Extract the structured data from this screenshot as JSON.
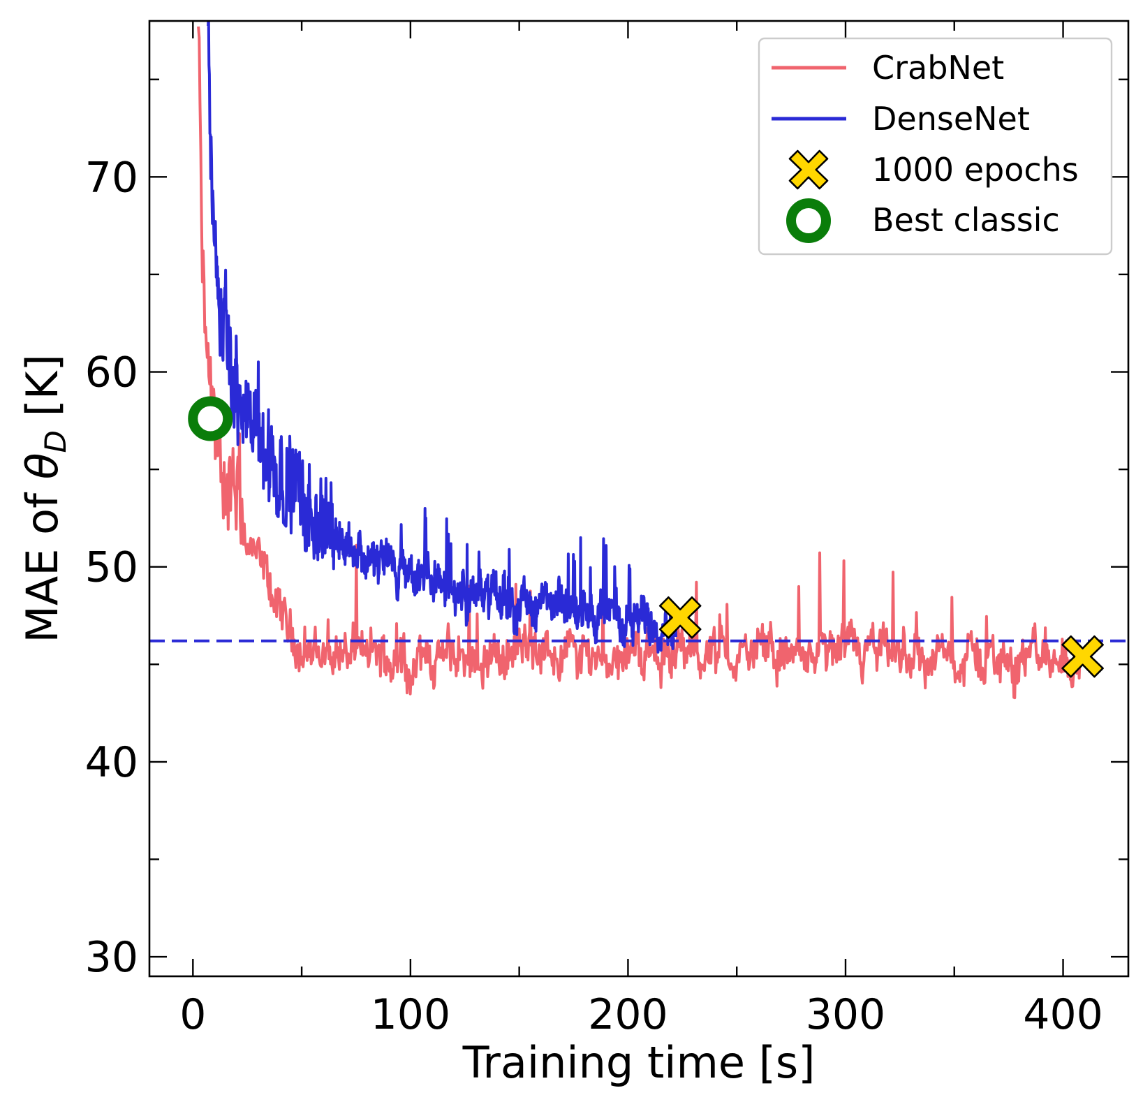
{
  "chart_data": {
    "type": "line",
    "xlabel": "Training time [s]",
    "ylabel_prefix": "MAE of ",
    "ylabel_symbol": "θ",
    "ylabel_subscript": "D",
    "ylabel_suffix": " [K]",
    "xlim": [
      -20,
      430
    ],
    "ylim": [
      29,
      78
    ],
    "x_ticks_major": [
      0,
      100,
      200,
      300,
      400
    ],
    "x_ticks_minor": [
      50,
      150,
      250,
      350
    ],
    "y_ticks_major": [
      30,
      40,
      50,
      60,
      70
    ],
    "y_ticks_minor": [
      35,
      45,
      55,
      65,
      75
    ],
    "grid": false,
    "legend_position": "top-right",
    "series": [
      {
        "name": "CrabNet",
        "color": "#f0646e",
        "x_end": 410,
        "keypoints": [
          [
            2.5,
            78
          ],
          [
            3.5,
            70
          ],
          [
            4.5,
            64
          ],
          [
            6,
            61
          ],
          [
            8,
            58
          ],
          [
            10,
            56
          ],
          [
            13,
            55
          ],
          [
            18,
            54
          ],
          [
            25,
            51
          ],
          [
            30,
            50
          ],
          [
            35,
            49
          ],
          [
            40,
            47.5
          ],
          [
            45,
            46.5
          ],
          [
            55,
            45.6
          ],
          [
            70,
            45.5
          ],
          [
            100,
            45.2
          ],
          [
            150,
            45.6
          ],
          [
            200,
            45.6
          ],
          [
            250,
            45.5
          ],
          [
            300,
            45.4
          ],
          [
            350,
            45.3
          ],
          [
            400,
            45.3
          ],
          [
            410,
            45.3
          ]
        ]
      },
      {
        "name": "DenseNet",
        "color": "#2a2ad6",
        "x_end": 222,
        "keypoints": [
          [
            7,
            78
          ],
          [
            8,
            72
          ],
          [
            10,
            67
          ],
          [
            12,
            63
          ],
          [
            15,
            61
          ],
          [
            20,
            59
          ],
          [
            25,
            57
          ],
          [
            30,
            56
          ],
          [
            40,
            55
          ],
          [
            50,
            53.5
          ],
          [
            60,
            52.5
          ],
          [
            70,
            51.5
          ],
          [
            80,
            50.5
          ],
          [
            100,
            49.5
          ],
          [
            120,
            48.8
          ],
          [
            150,
            48.2
          ],
          [
            180,
            47.7
          ],
          [
            200,
            47.4
          ],
          [
            222,
            47.2
          ]
        ]
      }
    ],
    "reference_line": {
      "y": 46.2,
      "color": "#2a2ad6",
      "style": "dashed"
    },
    "markers": {
      "epochs_1000": {
        "label": "1000 epochs",
        "color": "#ffd700",
        "points": [
          [
            224,
            47.4
          ],
          [
            409,
            45.4
          ]
        ]
      },
      "best_classic": {
        "label": "Best classic",
        "color": "#0a7d0a",
        "points": [
          [
            8,
            57.6
          ]
        ]
      }
    }
  }
}
